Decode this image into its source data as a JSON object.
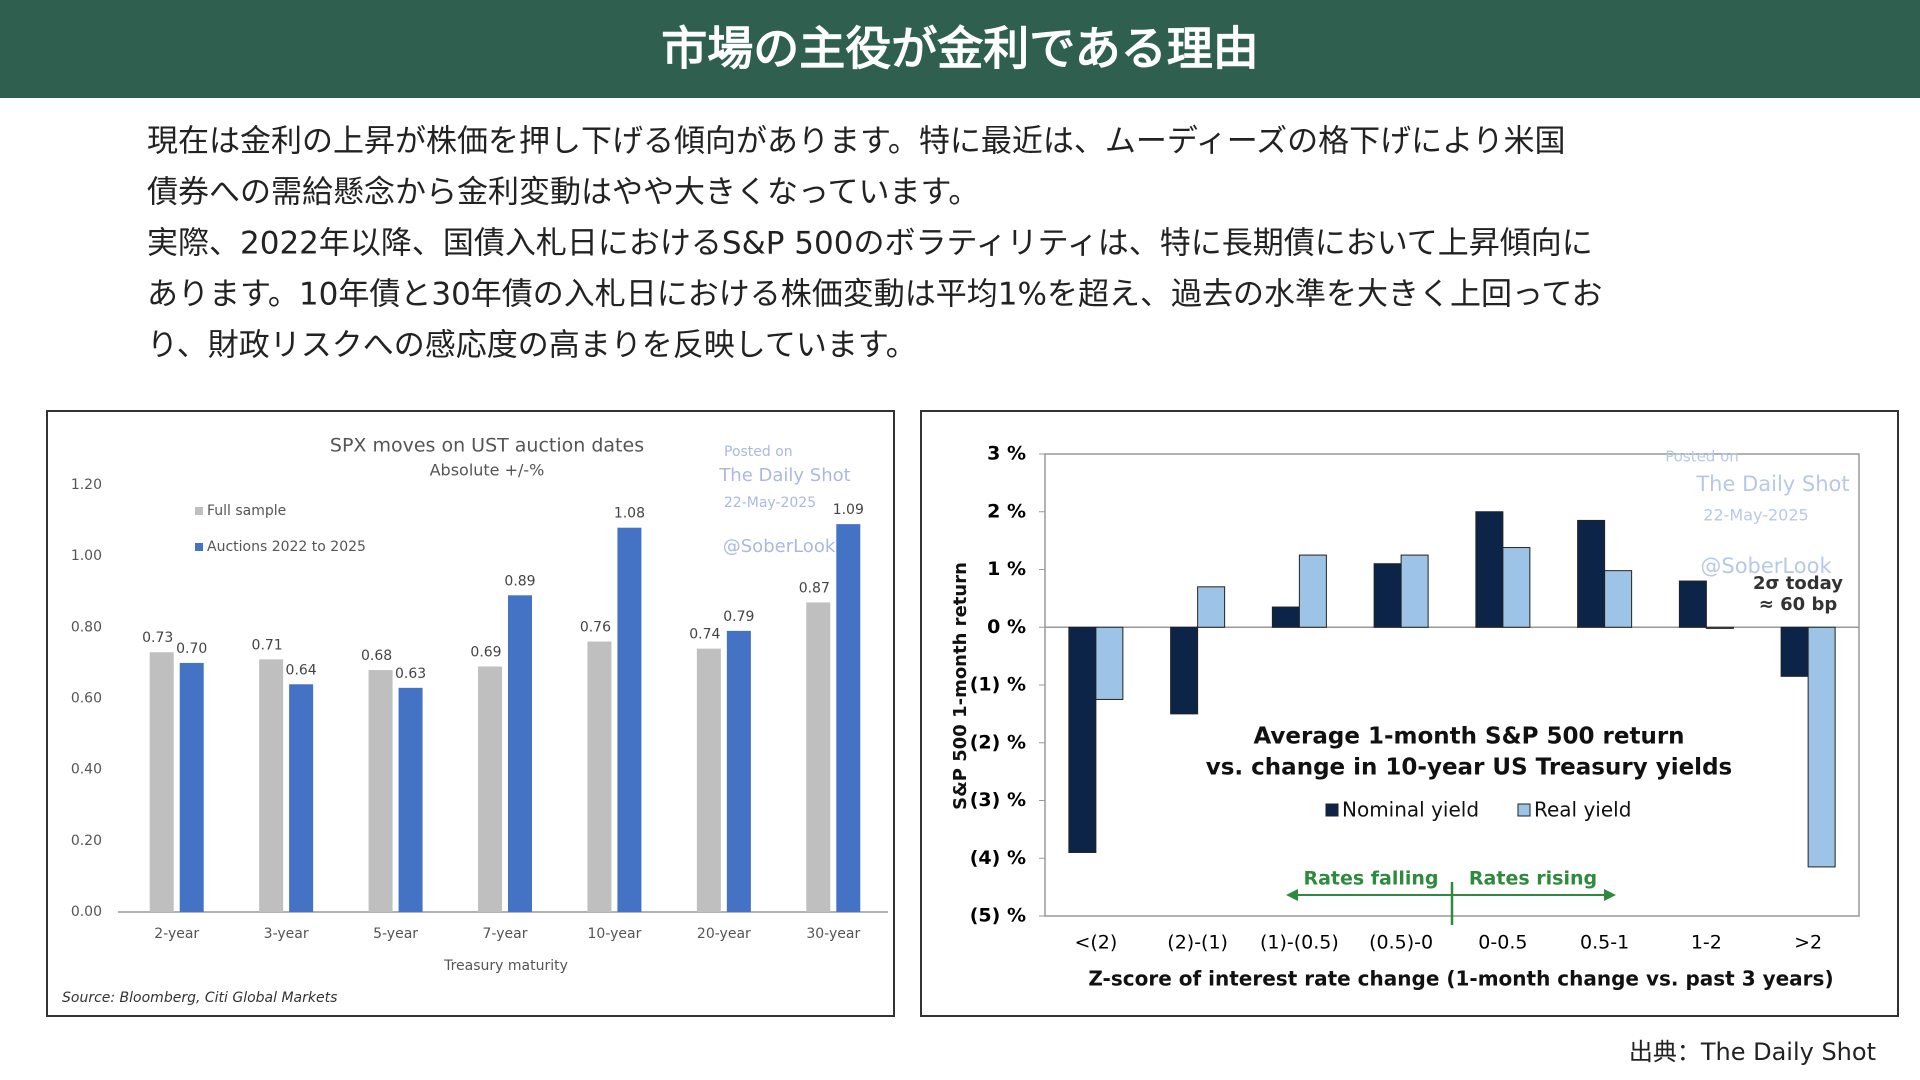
{
  "title": "市場の主役が金利である理由",
  "paragraphs": [
    "現在は金利の上昇が株価を押し下げる傾向があります。特に最近は、ムーディーズの格下げにより米国",
    "債券への需給懸念から金利変動はやや大きくなっています。",
    "実際、2022年以降、国債入札日におけるS&P 500のボラティリティは、特に長期債において上昇傾向に",
    "あります。10年債と30年債の入札日における株価変動は平均1%を超え、過去の水準を大きく上回ってお",
    "り、財政リスクへの感応度の高まりを反映しています。"
  ],
  "source": "出典：The Daily Shot",
  "chart_data": [
    {
      "type": "bar",
      "title": "SPX moves on UST auction dates",
      "subtitle": "Absolute +/-%",
      "x_label": "Treasury maturity",
      "source": "Source: Bloomberg, Citi Global Markets",
      "watermark": [
        "Posted on",
        "The Daily Shot",
        "22-May-2025",
        "@SoberLook"
      ],
      "categories": [
        "2-year",
        "3-year",
        "5-year",
        "7-year",
        "10-year",
        "20-year",
        "30-year"
      ],
      "series": [
        {
          "name": "Full sample",
          "color": "#bfbfbf",
          "values": [
            0.73,
            0.71,
            0.68,
            0.69,
            0.76,
            0.74,
            0.87
          ],
          "value_labels": [
            "0.73",
            "0.71",
            "0.68",
            "0.69",
            "0.76",
            "0.74",
            "0.87"
          ]
        },
        {
          "name": "Auctions 2022 to 2025",
          "color": "#4472c4",
          "values": [
            0.7,
            0.64,
            0.63,
            0.89,
            1.08,
            0.79,
            1.09
          ],
          "value_labels": [
            "0.70",
            "0.64",
            "0.63",
            "0.89",
            "1.08",
            "0.79",
            "1.09"
          ]
        }
      ],
      "ylim": [
        0,
        1.2
      ],
      "yticks": [
        {
          "value": 0,
          "label": "0.00"
        },
        {
          "value": 0.2,
          "label": "0.20"
        },
        {
          "value": 0.4,
          "label": "0.40"
        },
        {
          "value": 0.6,
          "label": "0.60"
        },
        {
          "value": 0.8,
          "label": "0.80"
        },
        {
          "value": 1.0,
          "label": "1.00"
        },
        {
          "value": 1.2,
          "label": "1.20"
        }
      ],
      "grid": false,
      "legend": "top-left"
    },
    {
      "type": "bar",
      "title": [
        "Average 1-month S&P 500 return",
        "vs. change in 10-year US Treasury yields"
      ],
      "y_label": "S&P 500 1-month return",
      "x_label": "Z-score of interest rate change (1-month change vs. past 3 years)",
      "watermark": [
        "Posted on",
        "The Daily Shot",
        "22-May-2025",
        "@SoberLook"
      ],
      "annotations": [
        "Rates falling",
        "Rates rising",
        "2σ today",
        "≈ 60 bp"
      ],
      "categories": [
        "<(2)",
        "(2)-(1)",
        "(1)-(0.5)",
        "(0.5)-0",
        "0-0.5",
        "0.5-1",
        "1-2",
        ">2"
      ],
      "series": [
        {
          "name": "Nominal yield",
          "color": "#0d2449",
          "values": [
            -3.9,
            -1.5,
            0.35,
            1.1,
            2.0,
            1.85,
            0.8,
            -0.85
          ]
        },
        {
          "name": "Real yield",
          "color": "#9dc3e6",
          "values": [
            -1.25,
            0.7,
            1.25,
            1.25,
            1.38,
            0.98,
            -0.02,
            -4.15
          ]
        }
      ],
      "ylim": [
        -5,
        3
      ],
      "yticks": [
        {
          "value": -5,
          "label": "(5) %"
        },
        {
          "value": -4,
          "label": "(4) %"
        },
        {
          "value": -3,
          "label": "(3) %"
        },
        {
          "value": -2,
          "label": "(2) %"
        },
        {
          "value": -1,
          "label": "(1) %"
        },
        {
          "value": 0,
          "label": "0 %"
        },
        {
          "value": 1,
          "label": "1 %"
        },
        {
          "value": 2,
          "label": "2 %"
        },
        {
          "value": 3,
          "label": "3 %"
        }
      ],
      "grid": false,
      "legend": "center"
    }
  ]
}
